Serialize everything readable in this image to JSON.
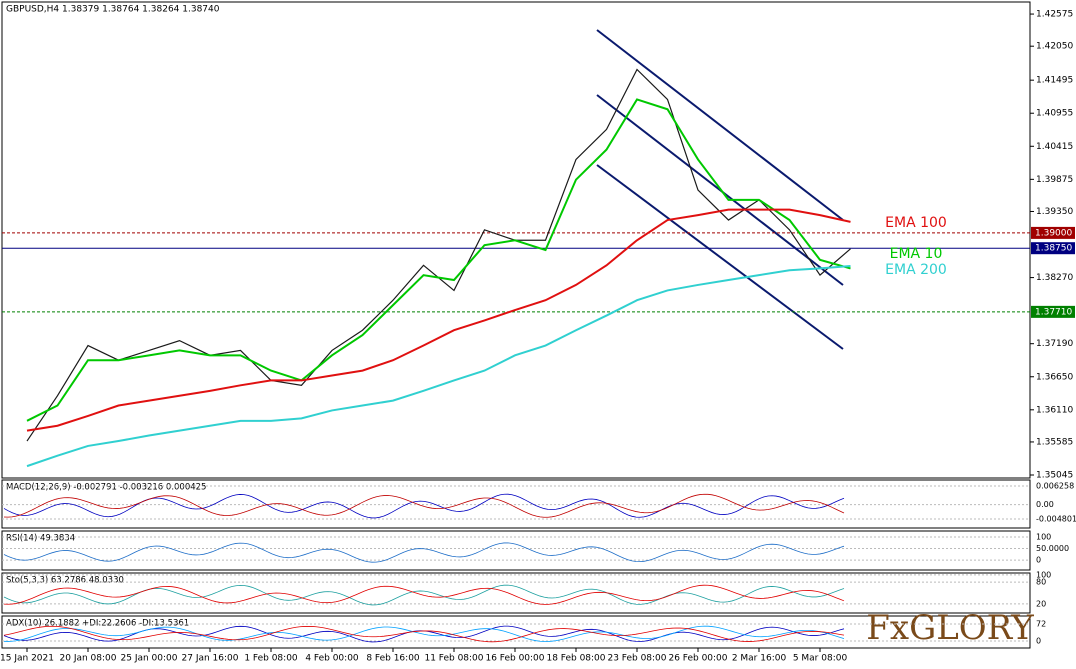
{
  "chart_data": {
    "type": "line",
    "title": "GBPUSD,H4  1.38379 1.38764 1.38264 1.38740",
    "x": [
      "15 Jan 2021",
      null,
      "20 Jan 08:00",
      null,
      "25 Jan 00:00",
      null,
      "27 Jan 16:00",
      null,
      "1 Feb 08:00",
      null,
      "4 Feb 00:00",
      null,
      "8 Feb 16:00",
      null,
      "11 Feb 08:00",
      null,
      "16 Feb 00:00",
      null,
      "18 Feb 08:00",
      null,
      "23 Feb 08:00",
      null,
      "26 Feb 00:00",
      null,
      "2 Mar 16:00",
      null,
      "5 Mar 08:00",
      null
    ],
    "series": [
      {
        "color": "#1a1a1a",
        "values": [
          1.356,
          1.3634,
          1.3716,
          1.3692,
          1.3708,
          1.3724,
          1.37,
          1.3708,
          1.3659,
          1.3651,
          1.3708,
          1.3741,
          1.379,
          1.3847,
          1.3806,
          1.3905,
          1.3888,
          1.3888,
          1.402,
          1.4069,
          1.4167,
          1.4118,
          1.397,
          1.3921,
          1.3954,
          1.3905,
          1.3831,
          1.3874
        ]
      },
      {
        "name": "EMA 10",
        "color": "#00c800",
        "values": [
          1.3593,
          1.3618,
          1.3692,
          1.3692,
          1.37,
          1.3708,
          1.37,
          1.37,
          1.3675,
          1.3659,
          1.37,
          1.3733,
          1.3782,
          1.3831,
          1.3823,
          1.388,
          1.3888,
          1.3872,
          1.3987,
          1.4036,
          1.4118,
          1.4102,
          1.402,
          1.3954,
          1.3954,
          1.3921,
          1.3856,
          1.3842
        ]
      },
      {
        "name": "EMA 100",
        "color": "#e01010",
        "values": [
          1.3577,
          1.3585,
          1.3601,
          1.3618,
          1.3626,
          1.3634,
          1.3642,
          1.3651,
          1.3659,
          1.3659,
          1.3667,
          1.3675,
          1.3692,
          1.3716,
          1.3741,
          1.3757,
          1.3774,
          1.379,
          1.3815,
          1.3847,
          1.3888,
          1.3921,
          1.3929,
          1.3938,
          1.3938,
          1.3938,
          1.3929,
          1.3918
        ]
      },
      {
        "name": "EMA 200",
        "color": "#30d0d0",
        "values": [
          1.3519,
          1.3536,
          1.3552,
          1.356,
          1.3569,
          1.3577,
          1.3585,
          1.3593,
          1.3593,
          1.3597,
          1.361,
          1.3618,
          1.3626,
          1.3642,
          1.3659,
          1.3675,
          1.37,
          1.3716,
          1.3741,
          1.3765,
          1.379,
          1.3806,
          1.3815,
          1.3823,
          1.3831,
          1.3839,
          1.3842,
          1.3846
        ]
      }
    ],
    "ylim": [
      1.34996,
      1.42772
    ],
    "yticks": [
      {
        "value": 1.42575,
        "label": "1.42575"
      },
      {
        "value": 1.4205,
        "label": "1.42050"
      },
      {
        "value": 1.41495,
        "label": "1.41495"
      },
      {
        "value": 1.40955,
        "label": "1.40955"
      },
      {
        "value": 1.40415,
        "label": "1.40415"
      },
      {
        "value": 1.39875,
        "label": "1.39875"
      },
      {
        "value": 1.3935,
        "label": "1.39350"
      },
      {
        "value": 1.3827,
        "label": "1.38270"
      },
      {
        "value": 1.3719,
        "label": "1.37190"
      },
      {
        "value": 1.3665,
        "label": "1.36650"
      },
      {
        "value": 1.3611,
        "label": "1.36110"
      },
      {
        "value": 1.35585,
        "label": "1.35585"
      },
      {
        "value": 1.35045,
        "label": "1.35045"
      }
    ],
    "levels": [
      {
        "value": 1.39,
        "label": "1.39000",
        "color": "#a00000"
      },
      {
        "value": 1.3875,
        "label": "1.38750",
        "color": "#000080"
      },
      {
        "value": 1.3771,
        "label": "1.37710",
        "color": "#008000"
      }
    ]
  },
  "indicators": [
    {
      "label": "MACD(12,26,9) -0.002791 -0.003216 0.000425",
      "ylim": [
        -0.00782,
        0.00827
      ],
      "yticks": [
        0.006258,
        {
          "value": 0,
          "label": "0.00"
        },
        -0.004801
      ]
    },
    {
      "label": "RSI(14) 49.3834",
      "ylim": [
        -43,
        126
      ],
      "yticks": [
        100,
        {
          "value": 50,
          "label": "50.0000"
        },
        0
      ]
    },
    {
      "label": "Sto(5,3,3) 63.2786 48.0330",
      "ylim": [
        -5,
        105
      ],
      "yticks": [
        100,
        80,
        20
      ]
    },
    {
      "label": "ADX(10) 26.1882 +DI:22.2606 -DI:13.5361",
      "ylim": [
        -30,
        106
      ],
      "yticks": [
        72,
        0
      ]
    }
  ],
  "brand": "FxGLORY"
}
